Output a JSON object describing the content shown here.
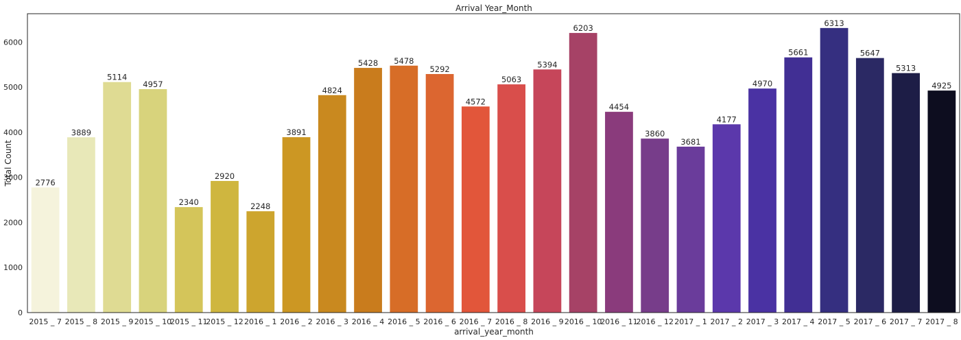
{
  "chart_data": {
    "type": "bar",
    "title": "Arrival Year_Month",
    "xlabel": "arrival_year_month",
    "ylabel": "Total Count",
    "ylim": [
      0,
      6630
    ],
    "yticks": [
      0,
      1000,
      2000,
      3000,
      4000,
      5000,
      6000
    ],
    "grid": false,
    "categories": [
      "2015 _ 7",
      "2015 _ 8",
      "2015 _ 9",
      "2015 _ 10",
      "2015 _ 11",
      "2015 _ 12",
      "2016 _ 1",
      "2016 _ 2",
      "2016 _ 3",
      "2016 _ 4",
      "2016 _ 5",
      "2016 _ 6",
      "2016 _ 7",
      "2016 _ 8",
      "2016 _ 9",
      "2016 _ 10",
      "2016 _ 11",
      "2016 _ 12",
      "2017 _ 1",
      "2017 _ 2",
      "2017 _ 3",
      "2017 _ 4",
      "2017 _ 5",
      "2017 _ 6",
      "2017 _ 7",
      "2017 _ 8"
    ],
    "values": [
      2776,
      3889,
      5114,
      4957,
      2340,
      2920,
      2248,
      3891,
      4824,
      5428,
      5478,
      5292,
      4572,
      5063,
      5394,
      6203,
      4454,
      3860,
      3681,
      4177,
      4970,
      5661,
      6313,
      5647,
      5313,
      4925
    ],
    "data_labels": [
      "2776",
      "3889",
      "5114",
      "4957",
      "2340",
      "2920",
      "2248",
      "3891",
      "4824",
      "5428",
      "5478",
      "5292",
      "4572",
      "5063",
      "5394",
      "6203",
      "4454",
      "3860",
      "3681",
      "4177",
      "4970",
      "5661",
      "6313",
      "5647",
      "5313",
      "4925"
    ],
    "colors": [
      "#f5f3dc",
      "#e8e8b8",
      "#dfdb93",
      "#d8d37c",
      "#d4c55a",
      "#cfb63f",
      "#cda52e",
      "#cc9723",
      "#c9891f",
      "#c97c1d",
      "#d76d27",
      "#dc6630",
      "#e2563a",
      "#d94e4b",
      "#c6465a",
      "#a64266",
      "#8a3b7c",
      "#773d8a",
      "#6a3c9b",
      "#5b38ab",
      "#4a32a3",
      "#412f94",
      "#352f80",
      "#2b2964",
      "#1d1d46",
      "#0d0d1f"
    ]
  }
}
